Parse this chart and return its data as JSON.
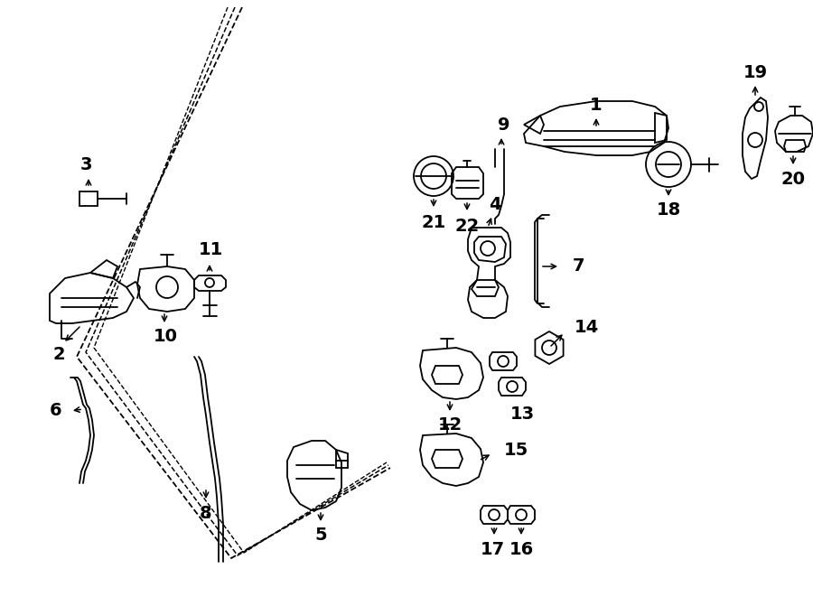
{
  "bg": "#ffffff",
  "lc": "#000000",
  "fig_w": 9.0,
  "fig_h": 6.61,
  "dpi": 100,
  "label_fs": 14
}
